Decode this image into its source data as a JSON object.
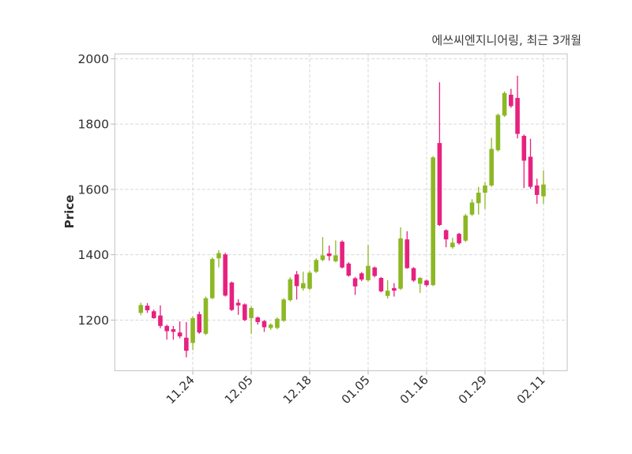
{
  "chart_data": {
    "type": "candlestick",
    "title": "에쓰씨엔지니어링, 최근 3개월",
    "ylabel": "Price",
    "ylim": [
      1045,
      2015
    ],
    "yticks": [
      1200,
      1400,
      1600,
      1800,
      2000
    ],
    "xticks": [
      {
        "label": "11.24",
        "index": 8
      },
      {
        "label": "12.05",
        "index": 17
      },
      {
        "label": "12.18",
        "index": 26
      },
      {
        "label": "01.05",
        "index": 35
      },
      {
        "label": "01.16",
        "index": 44
      },
      {
        "label": "01.29",
        "index": 53
      },
      {
        "label": "02.11",
        "index": 62
      }
    ],
    "grid": true,
    "legend": null,
    "ohlc_format": [
      "open",
      "high",
      "low",
      "close"
    ],
    "colors": {
      "up": "#8cb825",
      "down": "#e7217f",
      "grid": "#d6d6d6",
      "border": "#cccccc",
      "tick_text": "#2f2f2f",
      "title_text": "#3c3c3c",
      "background": "#ffffff"
    },
    "candles": [
      [
        1222,
        1253,
        1215,
        1246
      ],
      [
        1244,
        1252,
        1222,
        1230
      ],
      [
        1227,
        1232,
        1204,
        1206
      ],
      [
        1214,
        1245,
        1175,
        1182
      ],
      [
        1182,
        1186,
        1140,
        1166
      ],
      [
        1172,
        1182,
        1140,
        1164
      ],
      [
        1162,
        1196,
        1144,
        1150
      ],
      [
        1146,
        1194,
        1086,
        1106
      ],
      [
        1130,
        1212,
        1108,
        1206
      ],
      [
        1218,
        1226,
        1158,
        1162
      ],
      [
        1158,
        1272,
        1154,
        1267
      ],
      [
        1267,
        1392,
        1264,
        1387
      ],
      [
        1389,
        1414,
        1361,
        1405
      ],
      [
        1401,
        1406,
        1272,
        1275
      ],
      [
        1315,
        1318,
        1228,
        1231
      ],
      [
        1253,
        1264,
        1216,
        1245
      ],
      [
        1248,
        1251,
        1197,
        1200
      ],
      [
        1206,
        1243,
        1158,
        1237
      ],
      [
        1208,
        1211,
        1186,
        1194
      ],
      [
        1197,
        1200,
        1164,
        1178
      ],
      [
        1176,
        1190,
        1170,
        1186
      ],
      [
        1176,
        1208,
        1172,
        1204
      ],
      [
        1198,
        1267,
        1194,
        1263
      ],
      [
        1261,
        1331,
        1257,
        1325
      ],
      [
        1340,
        1350,
        1263,
        1304
      ],
      [
        1297,
        1348,
        1290,
        1313
      ],
      [
        1296,
        1350,
        1292,
        1345
      ],
      [
        1348,
        1389,
        1344,
        1384
      ],
      [
        1384,
        1454,
        1380,
        1398
      ],
      [
        1404,
        1428,
        1382,
        1396
      ],
      [
        1380,
        1444,
        1377,
        1398
      ],
      [
        1440,
        1444,
        1358,
        1361
      ],
      [
        1373,
        1377,
        1333,
        1336
      ],
      [
        1328,
        1332,
        1277,
        1303
      ],
      [
        1343,
        1347,
        1319,
        1324
      ],
      [
        1322,
        1430,
        1318,
        1366
      ],
      [
        1361,
        1364,
        1331,
        1335
      ],
      [
        1329,
        1332,
        1285,
        1288
      ],
      [
        1274,
        1322,
        1266,
        1290
      ],
      [
        1298,
        1313,
        1272,
        1290
      ],
      [
        1296,
        1484,
        1292,
        1450
      ],
      [
        1447,
        1472,
        1357,
        1359
      ],
      [
        1359,
        1362,
        1317,
        1321
      ],
      [
        1311,
        1332,
        1283,
        1329
      ],
      [
        1321,
        1324,
        1302,
        1307
      ],
      [
        1307,
        1702,
        1304,
        1698
      ],
      [
        1742,
        1928,
        1488,
        1491
      ],
      [
        1475,
        1478,
        1423,
        1447
      ],
      [
        1423,
        1452,
        1418,
        1437
      ],
      [
        1464,
        1467,
        1431,
        1435
      ],
      [
        1443,
        1525,
        1439,
        1520
      ],
      [
        1523,
        1570,
        1519,
        1560
      ],
      [
        1558,
        1608,
        1523,
        1590
      ],
      [
        1590,
        1623,
        1540,
        1612
      ],
      [
        1612,
        1758,
        1608,
        1724
      ],
      [
        1720,
        1832,
        1716,
        1828
      ],
      [
        1826,
        1900,
        1822,
        1895
      ],
      [
        1890,
        1908,
        1850,
        1855
      ],
      [
        1880,
        1948,
        1756,
        1770
      ],
      [
        1764,
        1768,
        1604,
        1688
      ],
      [
        1700,
        1755,
        1602,
        1608
      ],
      [
        1612,
        1633,
        1556,
        1583
      ],
      [
        1579,
        1658,
        1556,
        1615
      ]
    ]
  }
}
